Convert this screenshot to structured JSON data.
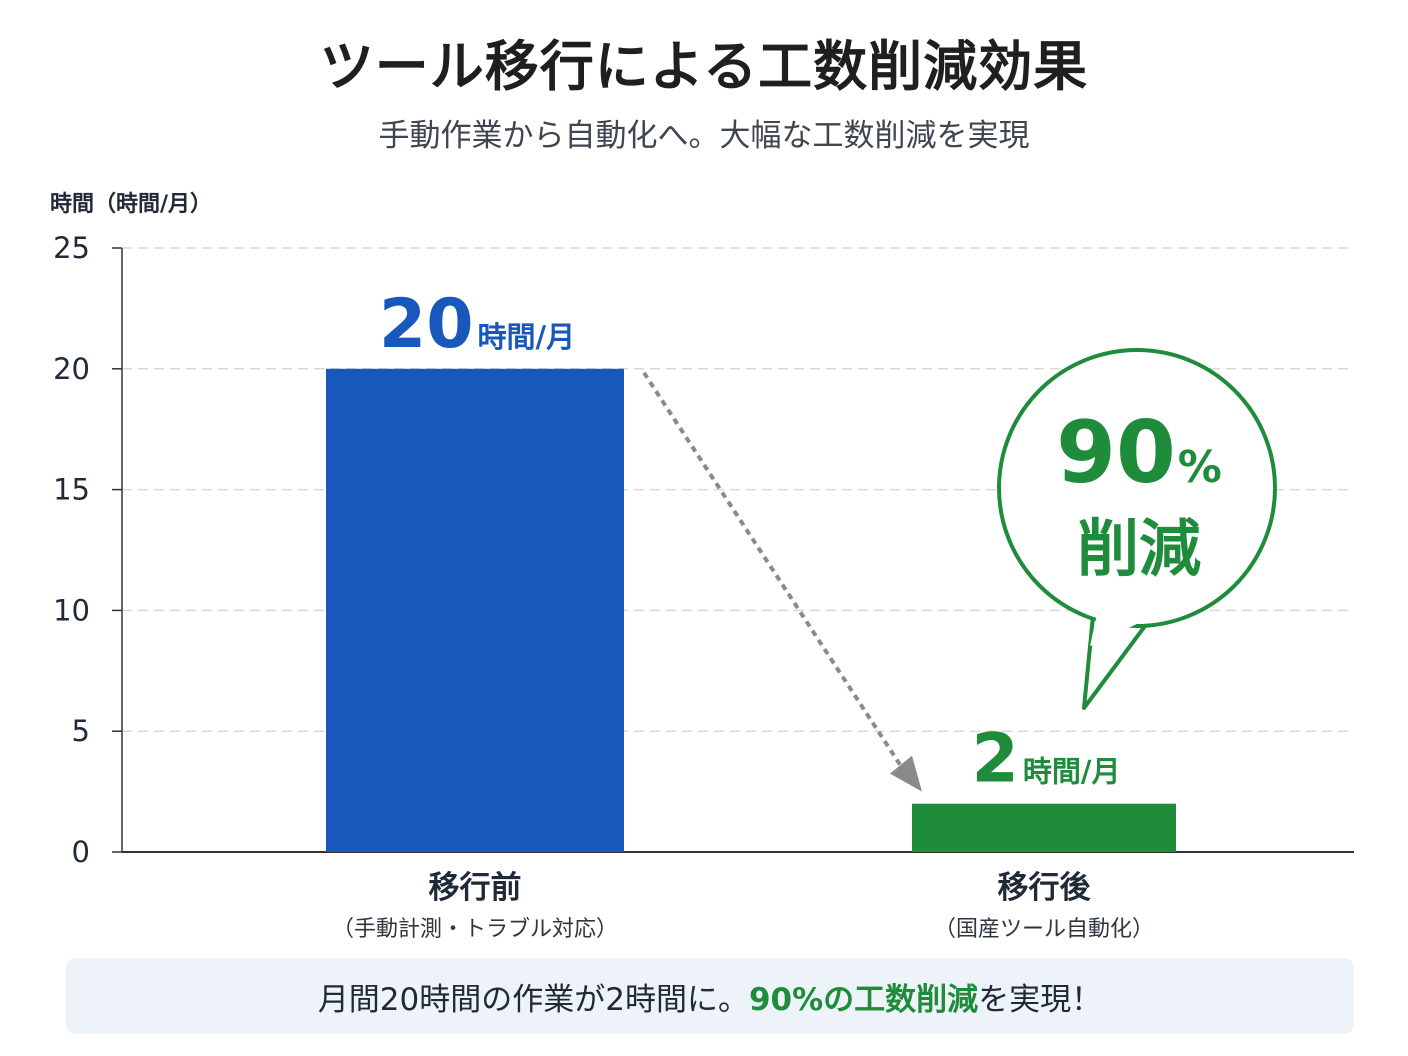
{
  "title": "ツール移行による工数削減効果",
  "subtitle": "手動作業から自動化へ。大幅な工数削減を実現",
  "colors": {
    "before": "#1858bc",
    "after": "#1e8c3a",
    "arrow": "#8a8a8a",
    "grid": "#d9d9d9"
  },
  "chart_data": {
    "type": "bar",
    "ylabel": "時間（時間/月）",
    "ylim": [
      0,
      25
    ],
    "yticks": [
      0,
      5,
      10,
      15,
      20,
      25
    ],
    "grid": true,
    "categories": [
      {
        "label": "移行前",
        "sublabel": "（手動計測・トラブル対応）"
      },
      {
        "label": "移行後",
        "sublabel": "（国産ツール自動化）"
      }
    ],
    "values": [
      20,
      2
    ],
    "value_labels": [
      {
        "number": "20",
        "unit": "時間/月"
      },
      {
        "number": "2",
        "unit": "時間/月"
      }
    ],
    "annotation": {
      "number": "90",
      "unit": "%",
      "text": "削減"
    }
  },
  "note": {
    "prefix": "月間20時間の作業が2時間に。",
    "highlight": "90%の工数削減",
    "suffix": "を実現！"
  }
}
